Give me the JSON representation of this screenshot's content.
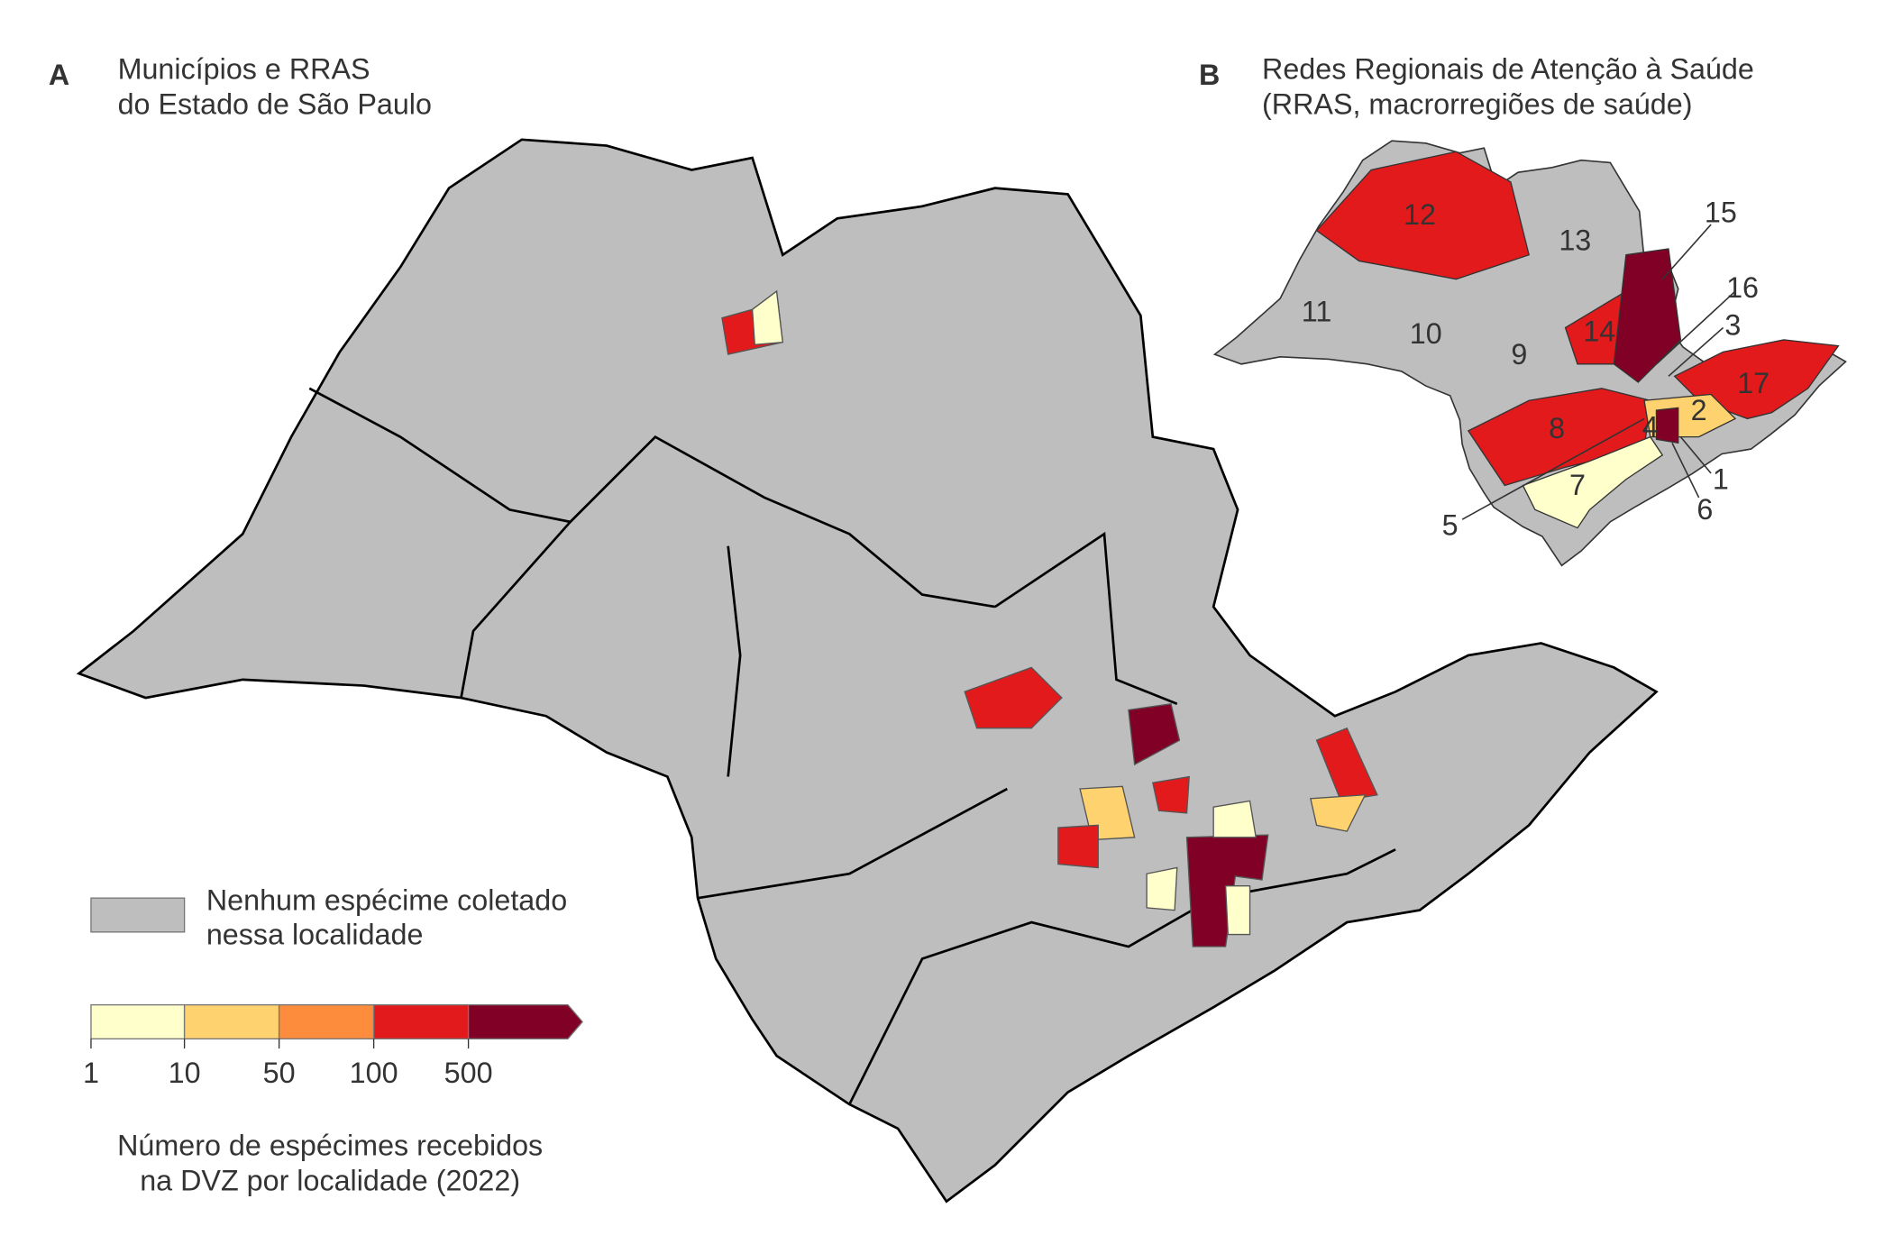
{
  "panel_a": {
    "letter": "A",
    "title_lines": [
      "Municípios e RRAS",
      "do Estado de São Paulo"
    ]
  },
  "panel_b": {
    "letter": "B",
    "title_lines": [
      "Redes Regionais de Atenção à Saúde",
      "(RRAS, macrorregiões de saúde)"
    ],
    "region_labels": [
      "1",
      "2",
      "3",
      "4",
      "5",
      "6",
      "7",
      "8",
      "9",
      "10",
      "11",
      "12",
      "13",
      "14",
      "15",
      "16",
      "17"
    ]
  },
  "legend": {
    "no_data_color": "#bebebe",
    "no_data_label_lines": [
      "Nenhum espécime coletado",
      "nessa localidade"
    ],
    "breaks": [
      1,
      10,
      50,
      100,
      500
    ],
    "colors": [
      "#ffffcc",
      "#fed36f",
      "#fd8d3c",
      "#e31a1c",
      "#800026"
    ],
    "title_lines": [
      "Número de espécimes recebidos",
      "na DVZ por localidade (2022)"
    ]
  }
}
